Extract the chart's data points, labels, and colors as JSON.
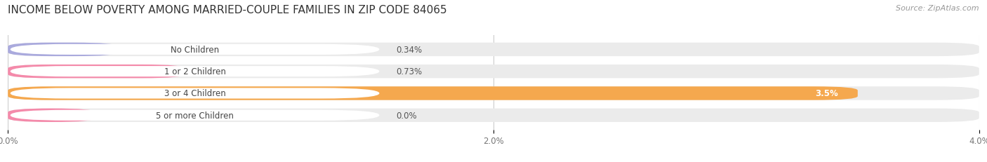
{
  "title": "INCOME BELOW POVERTY AMONG MARRIED-COUPLE FAMILIES IN ZIP CODE 84065",
  "source": "Source: ZipAtlas.com",
  "categories": [
    "No Children",
    "1 or 2 Children",
    "3 or 4 Children",
    "5 or more Children"
  ],
  "values": [
    0.34,
    0.73,
    3.5,
    0.0
  ],
  "bar_colors": [
    "#aaaadd",
    "#f48aaa",
    "#f5a84e",
    "#f48aaa"
  ],
  "bar_label_colors": [
    "#555555",
    "#555555",
    "#ffffff",
    "#555555"
  ],
  "value_inside": [
    false,
    false,
    true,
    false
  ],
  "xlim": [
    0,
    4.0
  ],
  "xticks": [
    0.0,
    2.0,
    4.0
  ],
  "xticklabels": [
    "0.0%",
    "2.0%",
    "4.0%"
  ],
  "background_color": "#ffffff",
  "bar_bg_color": "#ebebeb",
  "title_fontsize": 11,
  "source_fontsize": 8,
  "label_fontsize": 8.5,
  "tick_fontsize": 8.5,
  "value_label_fontsize": 8.5
}
